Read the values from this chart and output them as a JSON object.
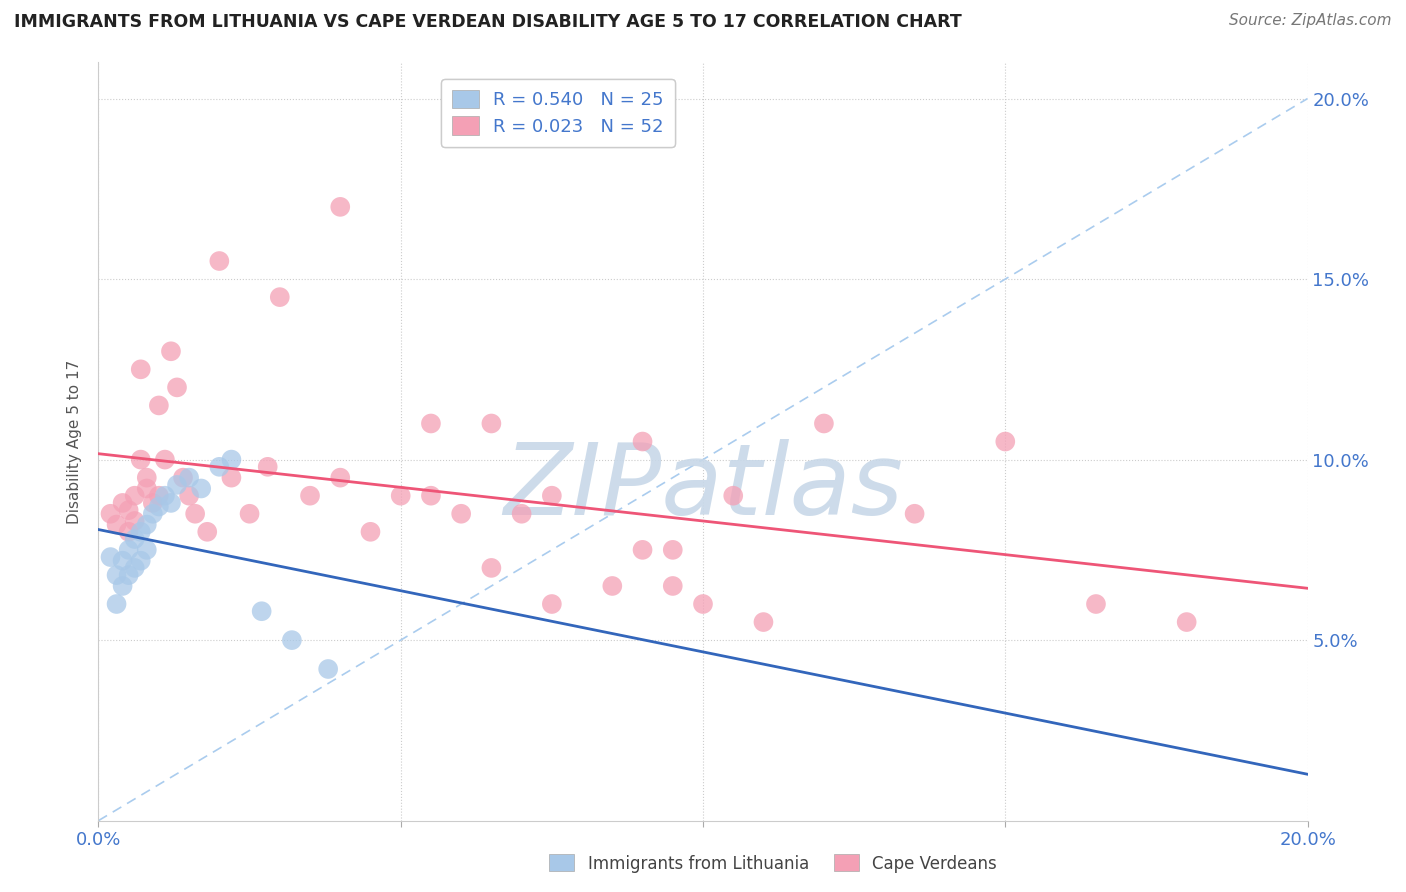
{
  "title": "IMMIGRANTS FROM LITHUANIA VS CAPE VERDEAN DISABILITY AGE 5 TO 17 CORRELATION CHART",
  "source": "Source: ZipAtlas.com",
  "ylabel": "Disability Age 5 to 17",
  "xmin": 0.0,
  "xmax": 0.2,
  "ymin": 0.0,
  "ymax": 0.21,
  "legend_r1": "R = 0.540",
  "legend_n1": "N = 25",
  "legend_r2": "R = 0.023",
  "legend_n2": "N = 52",
  "legend_label1": "Immigrants from Lithuania",
  "legend_label2": "Cape Verdeans",
  "blue_color": "#a8c8e8",
  "pink_color": "#f4a0b5",
  "blue_line_color": "#3366bb",
  "pink_line_color": "#ee5577",
  "ref_line_color": "#aaccee",
  "watermark": "ZIPatlas",
  "watermark_color": "#c8d8e8",
  "title_color": "#222222",
  "tick_color": "#4477cc",
  "blue_scatter_x": [
    0.002,
    0.003,
    0.003,
    0.004,
    0.004,
    0.005,
    0.005,
    0.006,
    0.006,
    0.007,
    0.007,
    0.008,
    0.008,
    0.009,
    0.01,
    0.011,
    0.012,
    0.013,
    0.015,
    0.017,
    0.02,
    0.022,
    0.027,
    0.032,
    0.038
  ],
  "blue_scatter_y": [
    0.073,
    0.068,
    0.06,
    0.072,
    0.065,
    0.075,
    0.068,
    0.078,
    0.07,
    0.08,
    0.072,
    0.082,
    0.075,
    0.085,
    0.087,
    0.09,
    0.088,
    0.093,
    0.095,
    0.092,
    0.098,
    0.1,
    0.058,
    0.05,
    0.042
  ],
  "pink_scatter_x": [
    0.002,
    0.003,
    0.004,
    0.005,
    0.005,
    0.006,
    0.006,
    0.007,
    0.007,
    0.008,
    0.008,
    0.009,
    0.01,
    0.01,
    0.011,
    0.012,
    0.013,
    0.014,
    0.015,
    0.016,
    0.018,
    0.02,
    0.022,
    0.025,
    0.028,
    0.03,
    0.035,
    0.04,
    0.045,
    0.05,
    0.055,
    0.065,
    0.07,
    0.075,
    0.085,
    0.09,
    0.095,
    0.105,
    0.12,
    0.135,
    0.15,
    0.165,
    0.18,
    0.04,
    0.055,
    0.06,
    0.065,
    0.075,
    0.09,
    0.095,
    0.1,
    0.11
  ],
  "pink_scatter_y": [
    0.085,
    0.082,
    0.088,
    0.08,
    0.086,
    0.083,
    0.09,
    0.125,
    0.1,
    0.095,
    0.092,
    0.088,
    0.115,
    0.09,
    0.1,
    0.13,
    0.12,
    0.095,
    0.09,
    0.085,
    0.08,
    0.155,
    0.095,
    0.085,
    0.098,
    0.145,
    0.09,
    0.095,
    0.08,
    0.09,
    0.09,
    0.07,
    0.085,
    0.09,
    0.065,
    0.075,
    0.065,
    0.09,
    0.11,
    0.085,
    0.105,
    0.06,
    0.055,
    0.17,
    0.11,
    0.085,
    0.11,
    0.06,
    0.105,
    0.075,
    0.06,
    0.055
  ]
}
